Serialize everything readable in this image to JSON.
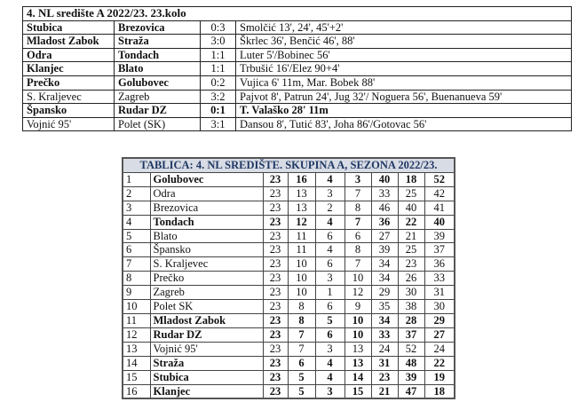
{
  "results": {
    "title": "4. NL središte A 2022/23. 23.kolo",
    "matches": [
      {
        "home": "Stubica",
        "away": "Brezovica",
        "score": "0:3",
        "scorers": "Smolčić 13', 24', 45'+2'",
        "bold_home": true,
        "bold_away": true,
        "bold_rest": false
      },
      {
        "home": "Mladost Zabok",
        "away": "Straža",
        "score": "3:0",
        "scorers": "Škrlec 36', Benčić 46', 88'",
        "bold_home": true,
        "bold_away": true,
        "bold_rest": false
      },
      {
        "home": "Odra",
        "away": "Tondach",
        "score": "1:1",
        "scorers": "Luter 5'/Bobinec 56'",
        "bold_home": true,
        "bold_away": true,
        "bold_rest": false
      },
      {
        "home": "Klanjec",
        "away": "Blato",
        "score": "1:1",
        "scorers": "Trbušić 16'/Elez 90+4'",
        "bold_home": true,
        "bold_away": true,
        "bold_rest": false
      },
      {
        "home": "Prečko",
        "away": "Golubovec",
        "score": "0:2",
        "scorers": "Vujica 6' 11m, Mar. Bobek 88'",
        "bold_home": true,
        "bold_away": true,
        "bold_rest": false
      },
      {
        "home": "S. Kraljevec",
        "away": "Zagreb",
        "score": "3:2",
        "scorers": "Pajvot 8', Patrun 24', Jug 32'/ Noguera 56', Buenanueva 59'",
        "bold_home": false,
        "bold_away": false,
        "bold_rest": false
      },
      {
        "home": "Špansko",
        "away": "Rudar DZ",
        "score": "0:1",
        "scorers": "T. Valaško 28' 11m",
        "bold_home": true,
        "bold_away": true,
        "bold_rest": true
      },
      {
        "home": "Vojnić 95'",
        "away": "Polet (SK)",
        "score": "3:1",
        "scorers": "Dansou 8', Tutić 83', Joha 86'/Gotovac 56'",
        "bold_home": false,
        "bold_away": false,
        "bold_rest": false
      }
    ]
  },
  "standings": {
    "title": "TABLICA: 4. NL SREDIŠTE. SKUPINA A, SEZONA 2022/23.",
    "header_bg": "#d8dce4",
    "header_color": "#1f3864",
    "rows": [
      {
        "pos": "1",
        "team": "Golubovec",
        "p": "23",
        "w": "16",
        "d": "4",
        "l": "3",
        "gf": "40",
        "ga": "18",
        "pts": "52",
        "bold": true
      },
      {
        "pos": "2",
        "team": "Odra",
        "p": "23",
        "w": "13",
        "d": "3",
        "l": "7",
        "gf": "33",
        "ga": "25",
        "pts": "42",
        "bold": false
      },
      {
        "pos": "3",
        "team": "Brezovica",
        "p": "23",
        "w": "13",
        "d": "2",
        "l": "8",
        "gf": "46",
        "ga": "40",
        "pts": "41",
        "bold": false
      },
      {
        "pos": "4",
        "team": "Tondach",
        "p": "23",
        "w": "12",
        "d": "4",
        "l": "7",
        "gf": "36",
        "ga": "22",
        "pts": "40",
        "bold": true
      },
      {
        "pos": "5",
        "team": "Blato",
        "p": "23",
        "w": "11",
        "d": "6",
        "l": "6",
        "gf": "27",
        "ga": "21",
        "pts": "39",
        "bold": false
      },
      {
        "pos": "6",
        "team": "Špansko",
        "p": "23",
        "w": "11",
        "d": "4",
        "l": "8",
        "gf": "39",
        "ga": "25",
        "pts": "37",
        "bold": false
      },
      {
        "pos": "7",
        "team": "S. Kraljevec",
        "p": "23",
        "w": "10",
        "d": "6",
        "l": "7",
        "gf": "34",
        "ga": "23",
        "pts": "36",
        "bold": false
      },
      {
        "pos": "8",
        "team": "Prečko",
        "p": "23",
        "w": "10",
        "d": "3",
        "l": "10",
        "gf": "34",
        "ga": "26",
        "pts": "33",
        "bold": false
      },
      {
        "pos": "9",
        "team": "Zagreb",
        "p": "23",
        "w": "10",
        "d": "1",
        "l": "12",
        "gf": "29",
        "ga": "30",
        "pts": "31",
        "bold": false
      },
      {
        "pos": "10",
        "team": "Polet SK",
        "p": "23",
        "w": "8",
        "d": "6",
        "l": "9",
        "gf": "35",
        "ga": "38",
        "pts": "30",
        "bold": false
      },
      {
        "pos": "11",
        "team": "Mladost Zabok",
        "p": "23",
        "w": "8",
        "d": "5",
        "l": "10",
        "gf": "34",
        "ga": "28",
        "pts": "29",
        "bold": true
      },
      {
        "pos": "12",
        "team": "Rudar DZ",
        "p": "23",
        "w": "7",
        "d": "6",
        "l": "10",
        "gf": "33",
        "ga": "37",
        "pts": "27",
        "bold": true
      },
      {
        "pos": "13",
        "team": "Vojnić 95'",
        "p": "23",
        "w": "7",
        "d": "3",
        "l": "13",
        "gf": "24",
        "ga": "52",
        "pts": "24",
        "bold": false
      },
      {
        "pos": "14",
        "team": "Straža",
        "p": "23",
        "w": "6",
        "d": "4",
        "l": "13",
        "gf": "31",
        "ga": "48",
        "pts": "22",
        "bold": true
      },
      {
        "pos": "15",
        "team": "Stubica",
        "p": "23",
        "w": "5",
        "d": "4",
        "l": "14",
        "gf": "23",
        "ga": "39",
        "pts": "19",
        "bold": true
      },
      {
        "pos": "16",
        "team": "Klanjec",
        "p": "23",
        "w": "5",
        "d": "3",
        "l": "15",
        "gf": "21",
        "ga": "47",
        "pts": "18",
        "bold": true
      }
    ]
  }
}
